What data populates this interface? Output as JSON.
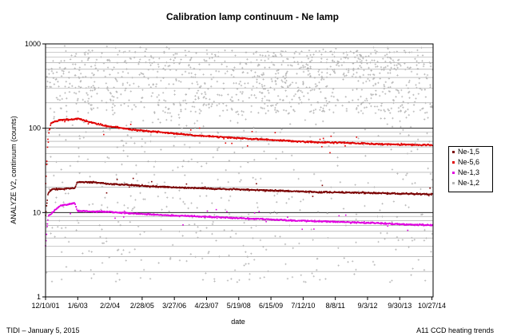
{
  "footer": {
    "left": "TIDI – January 5, 2015",
    "right": "A11 CCD heating trends"
  },
  "chart_data": {
    "type": "scatter",
    "title": "Calibration lamp continuum - Ne lamp",
    "xlabel": "date",
    "ylabel": "ANALYZE V2, continuum (counts)",
    "y_scale": "log",
    "ylim": [
      1,
      1000
    ],
    "y_ticks": [
      "1",
      "10",
      "100",
      "1000"
    ],
    "xlim": [
      "2001-12-10",
      "2014-11-10"
    ],
    "x_ticks": [
      "12/10/01",
      "1/6/03",
      "2/2/04",
      "2/28/05",
      "3/27/06",
      "4/23/07",
      "5/19/08",
      "6/15/09",
      "7/12/10",
      "8/8/11",
      "9/3/12",
      "9/30/13",
      "10/27/14"
    ],
    "grid": true,
    "legend_position": "right",
    "series": [
      {
        "name": "Ne-1,5",
        "color": "#7a0000",
        "marker": "dot",
        "trend": [
          [
            "2001-12-10",
            9
          ],
          [
            "2002-01-10",
            17
          ],
          [
            "2002-03-01",
            19
          ],
          [
            "2002-06-01",
            19
          ],
          [
            "2002-12-01",
            19.5
          ],
          [
            "2003-01-01",
            23
          ],
          [
            "2003-06-01",
            23
          ],
          [
            "2004-01-01",
            22
          ],
          [
            "2005-01-01",
            21
          ],
          [
            "2006-01-01",
            20
          ],
          [
            "2007-01-01",
            19.5
          ],
          [
            "2008-01-01",
            19
          ],
          [
            "2009-01-01",
            18.5
          ],
          [
            "2010-01-01",
            18
          ],
          [
            "2011-01-01",
            17.5
          ],
          [
            "2012-01-01",
            17.3
          ],
          [
            "2013-01-01",
            17
          ],
          [
            "2014-01-01",
            16.7
          ],
          [
            "2014-11-01",
            16.5
          ]
        ]
      },
      {
        "name": "Ne-5,6",
        "color": "#e00000",
        "marker": "dot",
        "trend": [
          [
            "2001-12-10",
            20
          ],
          [
            "2002-01-10",
            80
          ],
          [
            "2002-02-15",
            115
          ],
          [
            "2002-06-01",
            125
          ],
          [
            "2002-12-01",
            128
          ],
          [
            "2003-01-15",
            130
          ],
          [
            "2003-06-01",
            118
          ],
          [
            "2004-01-01",
            106
          ],
          [
            "2005-01-01",
            95
          ],
          [
            "2006-01-01",
            88
          ],
          [
            "2007-01-01",
            82
          ],
          [
            "2008-01-01",
            78
          ],
          [
            "2009-01-01",
            74
          ],
          [
            "2010-01-01",
            71
          ],
          [
            "2011-01-01",
            68
          ],
          [
            "2012-01-01",
            67
          ],
          [
            "2013-01-01",
            65
          ],
          [
            "2014-01-01",
            64
          ],
          [
            "2014-11-01",
            63
          ]
        ]
      },
      {
        "name": "Ne-1,3",
        "color": "#e000e0",
        "marker": "dot",
        "trend": [
          [
            "2001-12-10",
            4
          ],
          [
            "2002-01-10",
            9
          ],
          [
            "2002-06-01",
            12
          ],
          [
            "2002-12-01",
            13
          ],
          [
            "2003-01-01",
            10.5
          ],
          [
            "2003-06-01",
            10.3
          ],
          [
            "2004-01-01",
            10.2
          ],
          [
            "2005-01-01",
            9.7
          ],
          [
            "2006-01-01",
            9.3
          ],
          [
            "2007-01-01",
            9
          ],
          [
            "2008-01-01",
            8.7
          ],
          [
            "2009-01-01",
            8.4
          ],
          [
            "2010-01-01",
            8.1
          ],
          [
            "2011-01-01",
            7.9
          ],
          [
            "2012-01-01",
            7.7
          ],
          [
            "2013-01-01",
            7.5
          ],
          [
            "2014-01-01",
            7.2
          ],
          [
            "2014-11-01",
            7.1
          ]
        ]
      },
      {
        "name": "Ne-1,2",
        "color": "#b4b4b4",
        "marker": "plus",
        "description": "scattered noise between about 1.5 and 1000 counts, densest 200-600 in 2009-2013",
        "trend": [
          [
            "2002-01-01",
            300
          ],
          [
            "2003-01-01",
            200
          ],
          [
            "2006-01-01",
            300
          ],
          [
            "2009-01-01",
            350
          ],
          [
            "2012-01-01",
            450
          ],
          [
            "2014-11-01",
            350
          ]
        ]
      }
    ]
  }
}
